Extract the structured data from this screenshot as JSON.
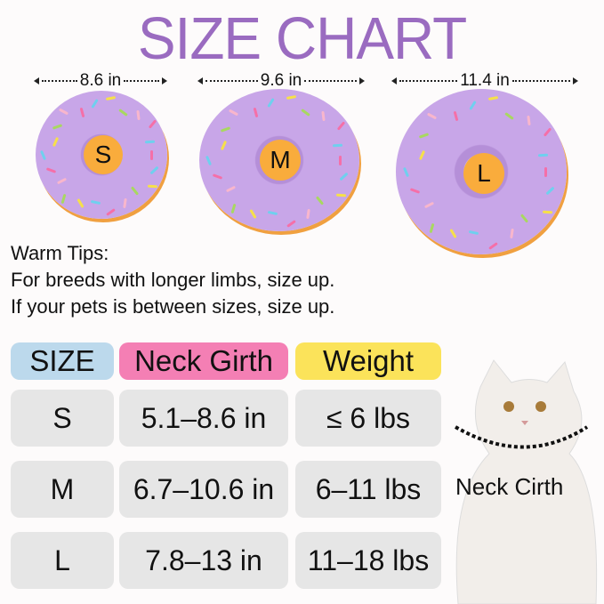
{
  "title": "SIZE CHART",
  "donuts": [
    {
      "size": "S",
      "width": "8.6 in"
    },
    {
      "size": "M",
      "width": "9.6 in"
    },
    {
      "size": "L",
      "width": "11.4 in"
    }
  ],
  "tips": {
    "heading": "Warm Tips:",
    "lines": [
      "For breeds with longer limbs, size up.",
      "If your pets is between sizes, size up."
    ]
  },
  "table": {
    "headers": [
      "SIZE",
      "Neck Girth",
      "Weight"
    ],
    "header_colors": [
      "#bcd9ec",
      "#f47fb4",
      "#fbe35a"
    ],
    "rows": [
      [
        "S",
        "5.1–8.6 in",
        "≤ 6 lbs"
      ],
      [
        "M",
        "6.7–10.6 in",
        "6–11 lbs"
      ],
      [
        "L",
        "7.8–13 in",
        "11–18 lbs"
      ]
    ]
  },
  "cat_label": "Neck Cirth",
  "colors": {
    "title": "#9a6bc0",
    "badge": "#f9ac3c",
    "donut": "#c8a6e8"
  }
}
